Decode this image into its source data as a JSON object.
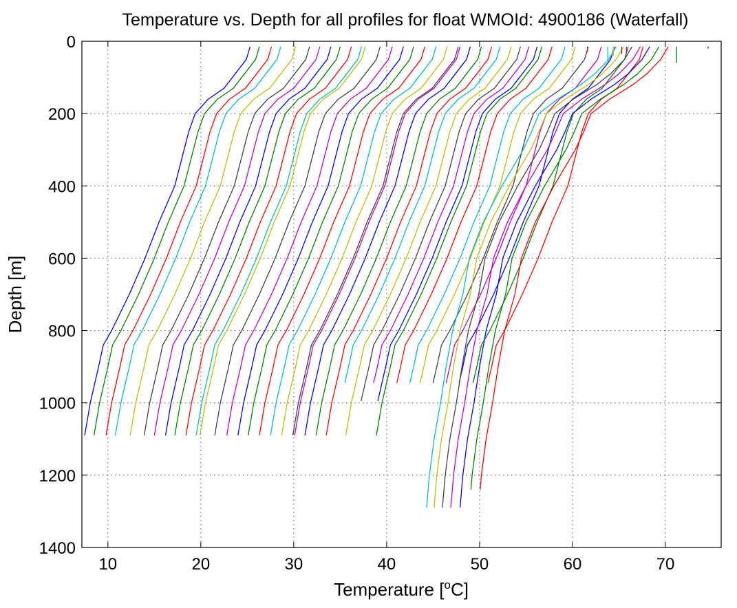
{
  "chart_data": {
    "type": "line",
    "title": "Temperature vs. Depth for all profiles for float WMOId: 4900186 (Waterfall)",
    "xlabel_main": "Temperature [",
    "xlabel_sup": "o",
    "xlabel_end": "C]",
    "ylabel": "Depth [m]",
    "xlim": [
      7.2,
      76
    ],
    "ylim": [
      0,
      1400
    ],
    "y_reversed": true,
    "grid": true,
    "legend": "none",
    "x_ticks": [
      10,
      20,
      30,
      40,
      50,
      60,
      70
    ],
    "x_tick_labels": [
      "10",
      "20",
      "30",
      "40",
      "50",
      "60",
      "70"
    ],
    "y_ticks": [
      0,
      200,
      400,
      600,
      800,
      1000,
      1200,
      1400
    ],
    "y_tick_labels": [
      "0",
      "200",
      "400",
      "600",
      "800",
      "1000",
      "1200",
      "1400"
    ],
    "colors": [
      "#0000ff",
      "#008000",
      "#ff0000",
      "#00bfbf",
      "#bfbf00",
      "#404040",
      "#bf00bf"
    ],
    "base_profile": {
      "depth": [
        15,
        50,
        90,
        130,
        160,
        200,
        250,
        300,
        400,
        500,
        600,
        700,
        800,
        840,
        900,
        1000,
        1090
      ],
      "temperature": [
        27.4,
        27.0,
        25.8,
        24.6,
        22.9,
        21.5,
        20.8,
        20.3,
        19.3,
        17.6,
        16.1,
        14.4,
        12.5,
        11.6,
        11.1,
        10.2,
        9.6
      ]
    },
    "group1_profiles": [
      {
        "offset": -2.1,
        "max_depth": 1090
      },
      {
        "offset": -1.1,
        "max_depth": 1090
      },
      {
        "offset": 0.2,
        "max_depth": 1090
      },
      {
        "offset": 1.2,
        "max_depth": 1090
      },
      {
        "offset": 2.8,
        "max_depth": 1090
      },
      {
        "offset": 4.3,
        "max_depth": 1090
      },
      {
        "offset": 5.4,
        "max_depth": 1090
      },
      {
        "offset": 6.6,
        "max_depth": 1090
      },
      {
        "offset": 7.6,
        "max_depth": 1090
      },
      {
        "offset": 8.8,
        "max_depth": 1090
      },
      {
        "offset": 9.9,
        "max_depth": 1090
      },
      {
        "offset": 10.3,
        "max_depth": 1090
      },
      {
        "offset": 11.9,
        "max_depth": 1090
      },
      {
        "offset": 13.2,
        "max_depth": 1090
      },
      {
        "offset": 14.4,
        "max_depth": 1090
      },
      {
        "offset": 15.5,
        "max_depth": 1090
      },
      {
        "offset": 16.7,
        "max_depth": 1090
      },
      {
        "offset": 17.9,
        "max_depth": 1090
      },
      {
        "offset": 19.1,
        "max_depth": 1090
      },
      {
        "offset": 20.3,
        "max_depth": 1090
      },
      {
        "offset": 20.5,
        "max_depth": 1090
      },
      {
        "offset": 21.6,
        "max_depth": 1090
      },
      {
        "offset": 22.8,
        "max_depth": 1090
      },
      {
        "offset": 23.9,
        "max_depth": 1090
      },
      {
        "offset": 24.8,
        "max_depth": 945
      },
      {
        "offset": 26.0,
        "max_depth": 1090
      },
      {
        "offset": 27.0,
        "max_depth": 995
      },
      {
        "offset": 27.9,
        "max_depth": 945
      },
      {
        "offset": 28.8,
        "max_depth": 995
      },
      {
        "offset": 29.3,
        "max_depth": 1090
      },
      {
        "offset": 30.4,
        "max_depth": 945
      },
      {
        "offset": 31.8,
        "max_depth": 945
      },
      {
        "offset": 32.9,
        "max_depth": 945
      },
      {
        "offset": 34.3,
        "max_depth": 945
      },
      {
        "offset": 35.7,
        "max_depth": 945
      },
      {
        "offset": 37.1,
        "max_depth": 945
      },
      {
        "offset": 38.6,
        "max_depth": 945
      },
      {
        "offset": 40.2,
        "max_depth": 945
      }
    ],
    "group2_base_profile": {
      "depth": [
        15,
        50,
        90,
        120,
        160,
        200,
        250,
        300,
        400,
        500,
        600,
        700,
        800,
        900,
        1000,
        1100,
        1200,
        1290
      ],
      "temperature": [
        68.3,
        67.5,
        66.0,
        64.5,
        62.0,
        60.0,
        59.2,
        58.3,
        56.0,
        54.0,
        52.5,
        51.8,
        50.7,
        50.0,
        49.4,
        48.7,
        48.2,
        47.9
      ]
    },
    "group2_profiles": [
      {
        "offset": -3.6,
        "max_depth": 1290
      },
      {
        "offset": -2.8,
        "max_depth": 1290
      },
      {
        "offset": -1.9,
        "max_depth": 1290
      },
      {
        "offset": -1.0,
        "max_depth": 1290
      },
      {
        "offset": 0.0,
        "max_depth": 1290
      },
      {
        "offset": 1.0,
        "max_depth": 1240
      },
      {
        "offset": 2.0,
        "max_depth": 1240
      }
    ],
    "surface_fragments": [
      {
        "t": 61.6,
        "d0": 15,
        "d1": 30
      },
      {
        "t": 63.8,
        "d0": 15,
        "d1": 55
      },
      {
        "t": 64.4,
        "d0": 15,
        "d1": 40
      },
      {
        "t": 65.3,
        "d0": 15,
        "d1": 35
      },
      {
        "t": 65.8,
        "d0": 15,
        "d1": 35
      },
      {
        "t": 74.6,
        "d0": 15,
        "d1": 20
      },
      {
        "t": 71.2,
        "d0": 15,
        "d1": 60
      }
    ]
  }
}
